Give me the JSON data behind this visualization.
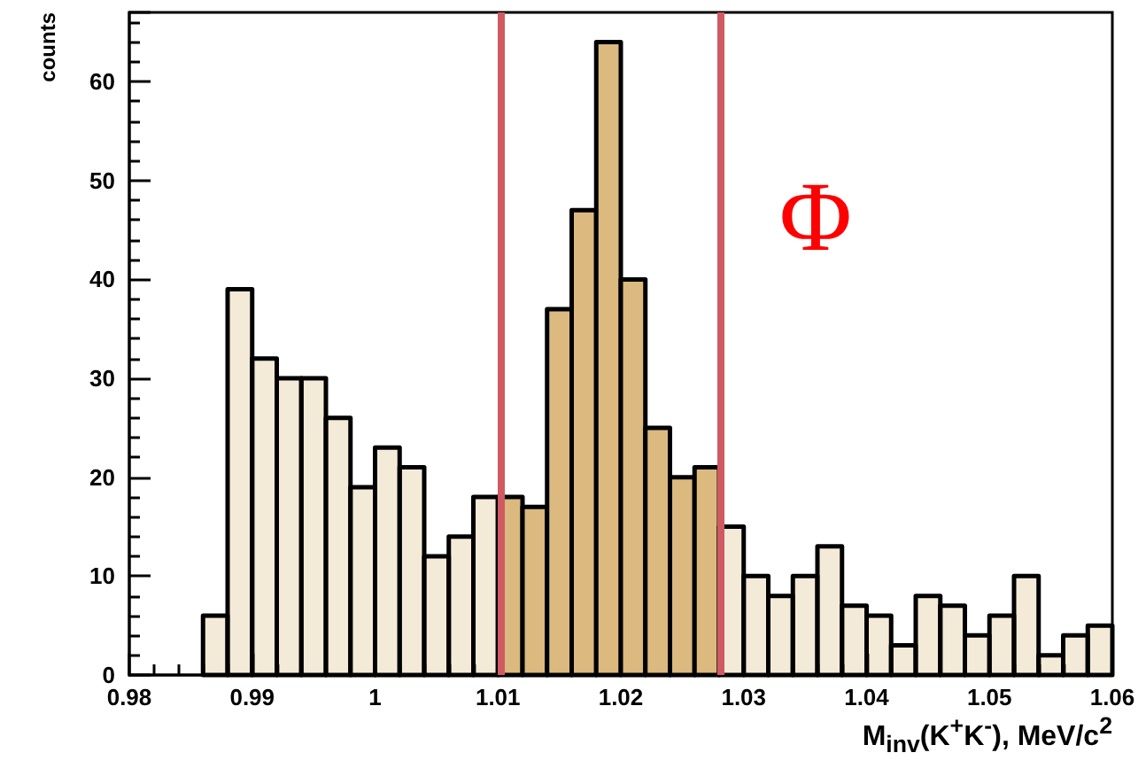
{
  "chart_data": {
    "type": "histogram",
    "xlabel": "M$_{inv}$(K$^{+}$K$^{-}$), MeV/c$^{2}$",
    "ylabel": "counts",
    "bins": [
      0.98,
      0.982,
      0.984,
      0.986,
      0.988,
      0.99,
      0.992,
      0.994,
      0.996,
      0.998,
      1.0,
      1.002,
      1.004,
      1.006,
      1.008,
      1.01,
      1.012,
      1.014,
      1.016,
      1.018,
      1.02,
      1.022,
      1.024,
      1.026,
      1.028,
      1.03,
      1.032,
      1.034,
      1.036,
      1.038,
      1.04,
      1.042,
      1.044,
      1.046,
      1.048,
      1.05,
      1.052,
      1.054,
      1.056,
      1.058,
      1.06
    ],
    "values": [
      0,
      0,
      0,
      6,
      39,
      32,
      30,
      30,
      26,
      19,
      23,
      21,
      12,
      14,
      18,
      18,
      17,
      37,
      47,
      64,
      40,
      25,
      20,
      21,
      15,
      10,
      8,
      10,
      13,
      7,
      6,
      3,
      8,
      7,
      4,
      6,
      10,
      2,
      4,
      5
    ],
    "color": "#dbb97f",
    "xlim": [
      0.98,
      1.06
    ],
    "xticks": [
      0.98,
      0.99,
      1,
      1.01,
      1.02,
      1.03,
      1.04,
      1.05,
      1.06
    ],
    "ylim": [
      0,
      67
    ],
    "yticks": [
      0,
      10,
      20,
      30,
      40,
      50,
      60
    ],
    "ref_lines": [
      {
        "axis": "x",
        "value": 1.0102,
        "label": null,
        "color": "#d05a62"
      },
      {
        "axis": "x",
        "value": 1.0281,
        "label": null,
        "color": "#d05a62"
      }
    ],
    "annotations": [
      "Φ"
    ]
  }
}
